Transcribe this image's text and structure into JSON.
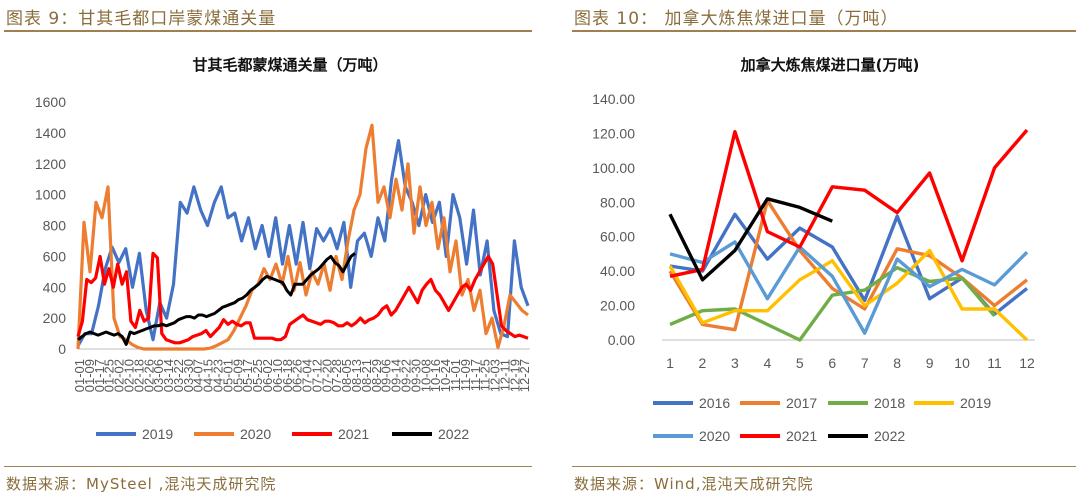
{
  "left_panel": {
    "caption": "图表 9：甘其毛都口岸蒙煤通关量",
    "source": "数据来源：MySteel ,混沌天成研究院"
  },
  "right_panel": {
    "caption": "图表 10：  加拿大炼焦煤进口量（万吨）",
    "source": "数据来源：Wind,混沌天成研究院"
  },
  "colors": {
    "caption": "#8a6d3b",
    "rule": "#a08050"
  },
  "chart_data": [
    {
      "type": "line",
      "title": "甘其毛都蒙煤通关量（万吨）",
      "xlabel": "",
      "ylabel": "",
      "ylim": [
        0,
        1600
      ],
      "yticks": [
        "0",
        "200",
        "400",
        "600",
        "800",
        "1000",
        "1200",
        "1400",
        "1600"
      ],
      "x_ticks": [
        "01-01",
        "01-09",
        "01-17",
        "01-25",
        "02-02",
        "02-10",
        "02-18",
        "02-26",
        "03-06",
        "03-14",
        "03-22",
        "03-30",
        "04-07",
        "04-15",
        "04-23",
        "05-01",
        "05-09",
        "05-17",
        "05-25",
        "06-02",
        "06-10",
        "06-18",
        "06-26",
        "07-04",
        "07-12",
        "07-20",
        "07-28",
        "08-05",
        "08-13",
        "08-21",
        "08-29",
        "09-06",
        "09-14",
        "09-22",
        "09-30",
        "10-08",
        "10-16",
        "10-24",
        "11-01",
        "11-09",
        "11-17",
        "11-25",
        "12-03",
        "12-11",
        "12-19",
        "12-27"
      ],
      "legend": "bottom",
      "series": [
        {
          "name": "2019",
          "color": "#4472c4",
          "values": [
            20,
            100,
            100,
            280,
            520,
            660,
            560,
            650,
            400,
            620,
            250,
            60,
            300,
            200,
            420,
            950,
            880,
            1050,
            900,
            800,
            950,
            1050,
            850,
            880,
            700,
            850,
            650,
            800,
            600,
            850,
            550,
            800,
            550,
            820,
            520,
            780,
            700,
            780,
            650,
            820,
            400,
            700,
            750,
            600,
            850,
            700,
            1100,
            1350,
            1050,
            950,
            800,
            1000,
            820,
            950,
            600,
            1000,
            850,
            550,
            900,
            480,
            700,
            250,
            100,
            80,
            700,
            400,
            280
          ]
        },
        {
          "name": "2020",
          "color": "#ed7d31",
          "values": [
            0,
            820,
            500,
            950,
            850,
            1050,
            200,
            80,
            60,
            30,
            10,
            0,
            0,
            0,
            0,
            0,
            0,
            0,
            0,
            0,
            0,
            0,
            5,
            20,
            40,
            60,
            120,
            200,
            280,
            380,
            420,
            520,
            450,
            550,
            420,
            600,
            380,
            560,
            350,
            500,
            420,
            550,
            380,
            600,
            450,
            700,
            900,
            1000,
            1300,
            1450,
            950,
            1050,
            850,
            1100,
            900,
            1200,
            750,
            1050,
            800,
            950,
            650,
            850,
            500,
            700,
            350,
            450,
            250,
            380,
            100,
            200,
            10,
            150,
            350,
            300,
            250,
            220
          ]
        },
        {
          "name": "2021",
          "color": "#ff0000",
          "values": [
            80,
            180,
            450,
            430,
            460,
            600,
            420,
            520,
            400,
            550,
            420,
            500,
            180,
            140,
            250,
            180,
            200,
            620,
            590,
            100,
            60,
            50,
            40,
            40,
            50,
            60,
            80,
            90,
            100,
            120,
            80,
            110,
            140,
            190,
            160,
            180,
            160,
            150,
            170,
            170,
            70,
            70,
            70,
            70,
            70,
            60,
            60,
            80,
            160,
            180,
            200,
            220,
            190,
            180,
            170,
            160,
            180,
            180,
            170,
            150,
            150,
            170,
            150,
            170,
            200,
            170,
            190,
            200,
            220,
            260,
            280,
            220,
            250,
            300,
            350,
            400,
            350,
            300,
            380,
            420,
            450,
            380,
            350,
            300,
            250,
            300,
            350,
            400,
            420,
            380,
            450,
            500,
            550,
            600,
            550,
            350,
            150,
            120,
            100,
            80,
            90,
            80,
            70
          ]
        },
        {
          "name": "2022",
          "color": "#000000",
          "values": [
            60,
            80,
            100,
            110,
            100,
            90,
            100,
            110,
            100,
            90,
            100,
            80,
            30,
            110,
            100,
            110,
            120,
            130,
            140,
            150,
            150,
            160,
            150,
            160,
            170,
            190,
            200,
            210,
            210,
            200,
            220,
            220,
            210,
            220,
            230,
            250,
            270,
            280,
            290,
            300,
            320,
            330,
            350,
            380,
            400,
            420,
            450,
            470,
            460,
            450,
            440,
            430,
            380,
            350,
            420,
            420,
            420,
            450,
            480,
            500,
            520,
            550,
            580,
            600,
            560,
            540,
            500,
            550,
            600,
            620
          ]
        }
      ]
    },
    {
      "type": "line",
      "title": "加拿大炼焦煤进口量(万吨)",
      "xlabel": "",
      "ylabel": "",
      "x": [
        1,
        2,
        3,
        4,
        5,
        6,
        7,
        8,
        9,
        10,
        11,
        12
      ],
      "ylim": [
        0,
        140
      ],
      "yticks": [
        "0.00",
        "20.00",
        "40.00",
        "60.00",
        "80.00",
        "100.00",
        "120.00",
        "140.00"
      ],
      "legend": "bottom",
      "series": [
        {
          "name": "2016",
          "color": "#4472c4",
          "values": [
            43,
            40,
            73,
            47,
            65,
            54,
            23,
            72,
            24,
            36,
            15,
            30
          ]
        },
        {
          "name": "2017",
          "color": "#ed7d31",
          "values": [
            40,
            9,
            6,
            81,
            52,
            30,
            18,
            53,
            49,
            36,
            20,
            35
          ]
        },
        {
          "name": "2018",
          "color": "#70ad47",
          "values": [
            9,
            17,
            18,
            9,
            0,
            26,
            29,
            42,
            34,
            36,
            14,
            null
          ]
        },
        {
          "name": "2019",
          "color": "#ffc000",
          "values": [
            43,
            10,
            17,
            17,
            35,
            46,
            20,
            33,
            52,
            18,
            18,
            0
          ]
        },
        {
          "name": "2020",
          "color": "#5b9bd5",
          "values": [
            50,
            45,
            57,
            24,
            54,
            37,
            4,
            47,
            31,
            41,
            32,
            51
          ]
        },
        {
          "name": "2021",
          "color": "#ff0000",
          "values": [
            37,
            41,
            121,
            63,
            54,
            89,
            87,
            74,
            97,
            46,
            100,
            122
          ]
        },
        {
          "name": "2022",
          "color": "#000000",
          "values": [
            73,
            35,
            52,
            82,
            77,
            69,
            null,
            null,
            null,
            null,
            null,
            null
          ]
        }
      ]
    }
  ]
}
